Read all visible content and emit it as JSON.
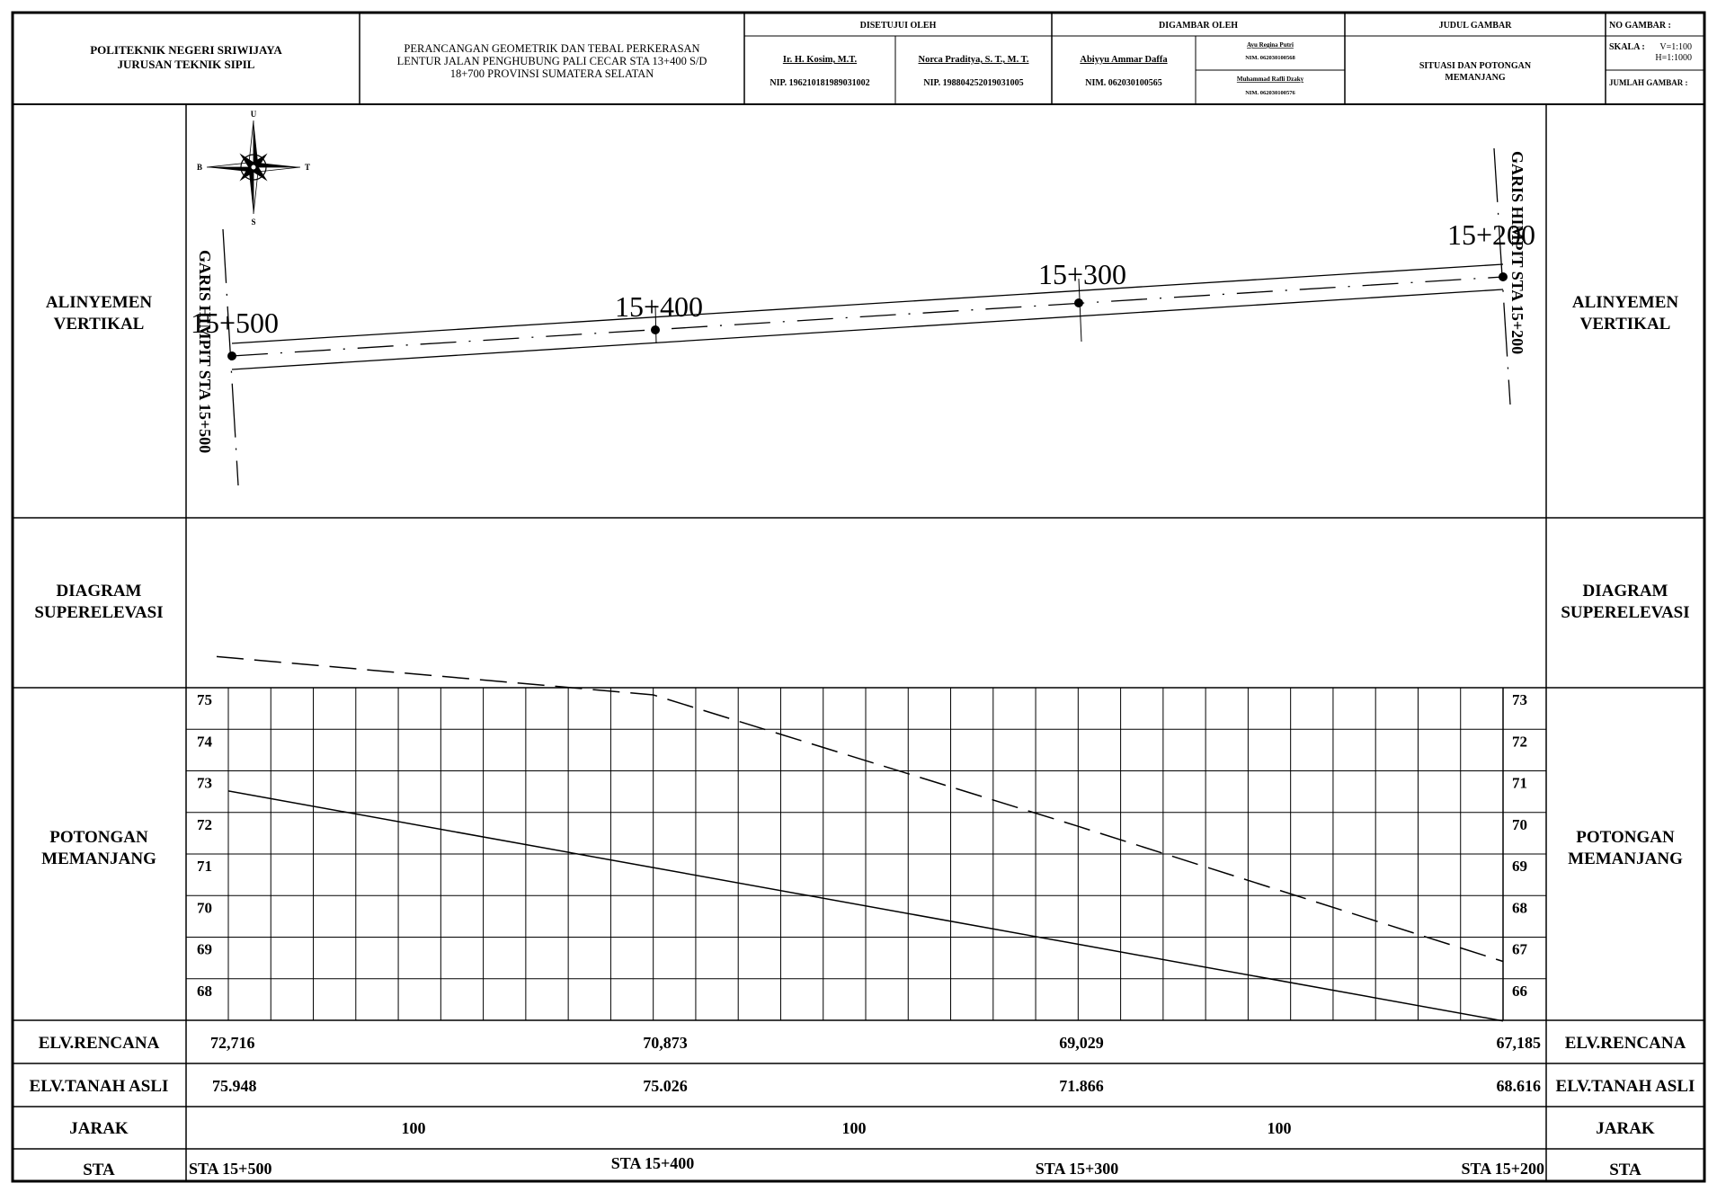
{
  "title_block": {
    "institution": [
      "POLITEKNIK NEGERI SRIWIJAYA",
      "JURUSAN TEKNIK SIPIL"
    ],
    "project": [
      "PERANCANGAN GEOMETRIK DAN TEBAL PERKERASAN",
      "LENTUR JALAN PENGHUBUNG PALI CECAR STA 13+400 S/D",
      "18+700 PROVINSI SUMATERA SELATAN"
    ],
    "approved_header": "DISETUJUI OLEH",
    "approver1_name": "Ir. H. Kosim, M.T.",
    "approver1_nip": "NIP. 196210181989031002",
    "approver2_name": "Norca Praditya, S. T., M. T.",
    "approver2_nip": "NIP. 198804252019031005",
    "drawn_header": "DIGAMBAR OLEH",
    "drawer1_name": "Abiyyu Ammar Daffa",
    "drawer1_nim": "NIM. 062030100565",
    "drawer2_name": "Ayu Regina Putri",
    "drawer2_nim": "NIM. 062030100568",
    "drawer3_name": "Muhammad Rafli Dzaky",
    "drawer3_nim": "NIM. 062030100576",
    "drawing_title_header": "JUDUL GAMBAR",
    "drawing_title": [
      "SITUASI DAN POTONGAN",
      "MEMANJANG"
    ],
    "drawing_no_label": "NO GAMBAR :",
    "scale_label": "SKALA :",
    "scale_v": "V=1:100",
    "scale_h": "H=1:1000",
    "total_label": "JUMLAH GAMBAR :"
  },
  "rows": {
    "alinyemen": [
      "ALINYEMEN",
      "VERTIKAL"
    ],
    "superelevasi": [
      "DIAGRAM",
      "SUPERELEVASI"
    ],
    "potongan": [
      "POTONGAN",
      "MEMANJANG"
    ],
    "elv_rencana": "ELV.RENCANA",
    "elv_tanah": "ELV.TANAH ASLI",
    "jarak": "JARAK",
    "sta": "STA"
  },
  "compass": {
    "n": "U",
    "s": "S",
    "w": "B",
    "e": "T",
    "icon": "compass-rose-icon"
  },
  "plan": {
    "stations": [
      "15+500",
      "15+400",
      "15+300",
      "15+200"
    ],
    "garis_left": "GARIS HIMPIT STA 15+500",
    "garis_right": "GARIS HIMPIT STA 15+200"
  },
  "chart_data": {
    "type": "line",
    "categories": [
      "STA 15+500",
      "STA 15+400",
      "STA 15+300",
      "STA 15+200"
    ],
    "left_axis_ticks": [
      75,
      74,
      73,
      72,
      71,
      70,
      69,
      68
    ],
    "right_axis_ticks": [
      73,
      72,
      71,
      70,
      69,
      68,
      67,
      66
    ],
    "series": [
      {
        "values": [
          75.948,
          75.026,
          71.866,
          68.616
        ],
        "style": "dashed"
      },
      {
        "values": [
          72.716,
          70.873,
          69.029,
          67.185
        ],
        "style": "solid"
      }
    ]
  },
  "table": {
    "elv_rencana": [
      "72,716",
      "70,873",
      "69,029",
      "67,185"
    ],
    "elv_tanah": [
      "75.948",
      "75.026",
      "71.866",
      "68.616"
    ],
    "jarak": [
      "100",
      "100",
      "100"
    ],
    "sta": [
      "STA 15+500",
      "STA 15+400",
      "STA 15+300",
      "STA 15+200"
    ]
  }
}
